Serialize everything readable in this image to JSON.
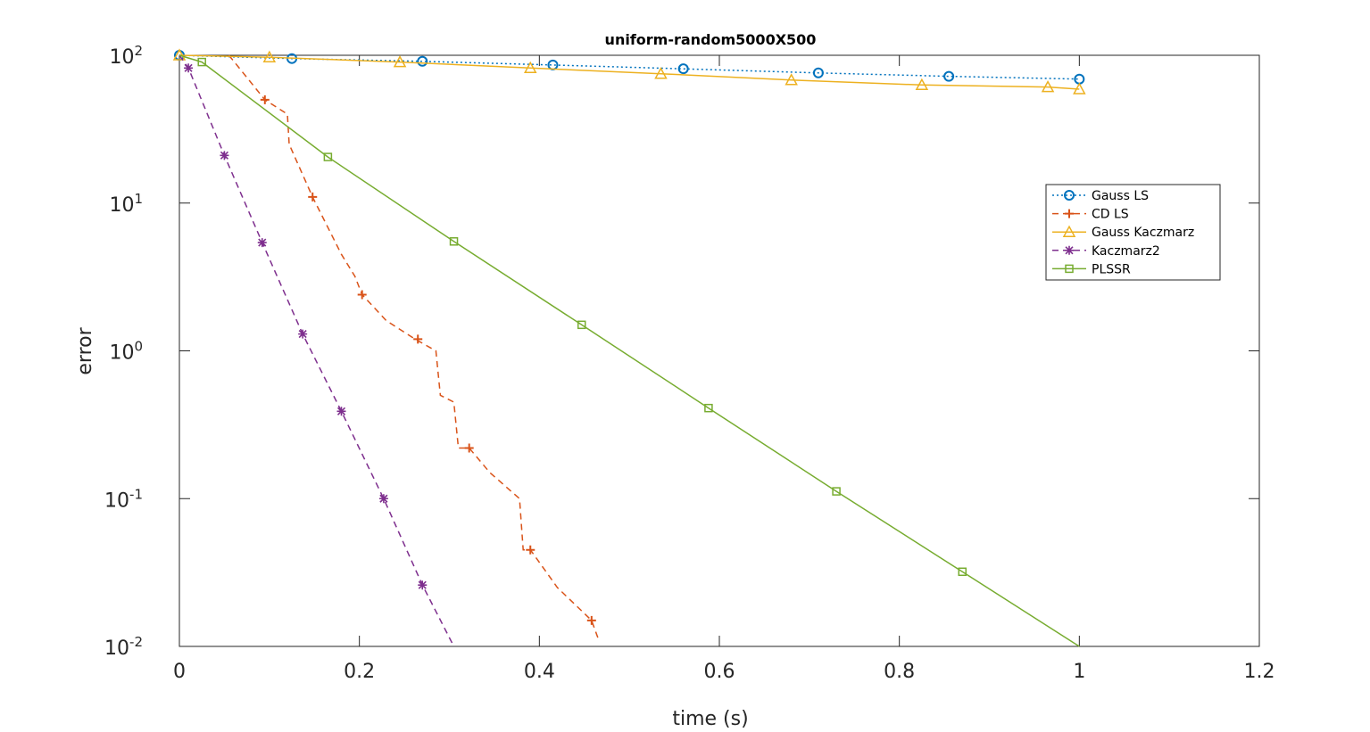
{
  "chart_data": {
    "type": "line",
    "title": "uniform-random5000X500",
    "xlabel": "time (s)",
    "ylabel": "error",
    "xlim": [
      0,
      1.2
    ],
    "ylim": [
      0.01,
      100
    ],
    "yscale": "log",
    "xticks": [
      0,
      0.2,
      0.4,
      0.6,
      0.8,
      1,
      1.2
    ],
    "xtick_labels": [
      "0",
      "0.2",
      "0.4",
      "0.6",
      "0.8",
      "1",
      "1.2"
    ],
    "yticks": [
      0.01,
      0.1,
      1,
      10,
      100
    ],
    "ytick_labels": [
      {
        "base": "10",
        "exp": "-2"
      },
      {
        "base": "10",
        "exp": "-1"
      },
      {
        "base": "10",
        "exp": "0"
      },
      {
        "base": "10",
        "exp": "1"
      },
      {
        "base": "10",
        "exp": "2"
      }
    ],
    "grid": false,
    "legend_position": "top-right",
    "series": [
      {
        "name": "Gauss LS",
        "color": "#0072BD",
        "line_style": "dotted",
        "marker": "circle",
        "x": [
          0,
          0.125,
          0.27,
          0.415,
          0.56,
          0.71,
          0.855,
          1.0
        ],
        "y": [
          100,
          95,
          91,
          86,
          81,
          76,
          72,
          69
        ]
      },
      {
        "name": "CD LS",
        "color": "#D95319",
        "line_style": "dashed",
        "marker": "plus",
        "x": [
          0.055,
          0.095,
          0.12,
          0.122,
          0.148,
          0.18,
          0.195,
          0.203,
          0.23,
          0.262,
          0.285,
          0.29,
          0.305,
          0.31,
          0.322,
          0.345,
          0.378,
          0.382,
          0.39,
          0.42,
          0.458,
          0.466
        ],
        "y": [
          100,
          50,
          40,
          25,
          11,
          4.5,
          3.2,
          2.4,
          1.6,
          1.2,
          1.0,
          0.5,
          0.45,
          0.22,
          0.22,
          0.15,
          0.1,
          0.045,
          0.045,
          0.025,
          0.015,
          0.011
        ],
        "marker_x": [
          0.095,
          0.148,
          0.203,
          0.265,
          0.322,
          0.39,
          0.458
        ],
        "marker_y": [
          50,
          11,
          2.4,
          1.2,
          0.22,
          0.045,
          0.015
        ]
      },
      {
        "name": "Gauss Kaczmarz",
        "color": "#EDB120",
        "line_style": "solid",
        "marker": "triangle",
        "x": [
          0,
          0.1,
          0.245,
          0.39,
          0.535,
          0.68,
          0.825,
          0.965,
          1.0
        ],
        "y": [
          100,
          97,
          90,
          82,
          75,
          68,
          63,
          61,
          59
        ]
      },
      {
        "name": "Kaczmarz2",
        "color": "#7E2F8E",
        "line_style": "dashed",
        "marker": "asterisk",
        "x": [
          0,
          0.01,
          0.05,
          0.092,
          0.137,
          0.18,
          0.227,
          0.27,
          0.305
        ],
        "y": [
          100,
          82,
          21,
          5.4,
          1.3,
          0.39,
          0.1,
          0.026,
          0.01
        ],
        "marker_x": [
          0.01,
          0.05,
          0.092,
          0.137,
          0.18,
          0.227,
          0.27
        ],
        "marker_y": [
          82,
          21,
          5.4,
          1.3,
          0.39,
          0.1,
          0.026
        ]
      },
      {
        "name": "PLSSR",
        "color": "#77AC30",
        "line_style": "solid",
        "marker": "square",
        "x": [
          0,
          0.025,
          0.165,
          0.305,
          0.447,
          0.588,
          0.73,
          0.87,
          1.0
        ],
        "y": [
          100,
          90,
          20.5,
          5.5,
          1.5,
          0.41,
          0.112,
          0.032,
          0.01
        ],
        "marker_x": [
          0.025,
          0.165,
          0.305,
          0.447,
          0.588,
          0.73,
          0.87
        ],
        "marker_y": [
          90,
          20.5,
          5.5,
          1.5,
          0.41,
          0.112,
          0.032
        ]
      }
    ]
  }
}
